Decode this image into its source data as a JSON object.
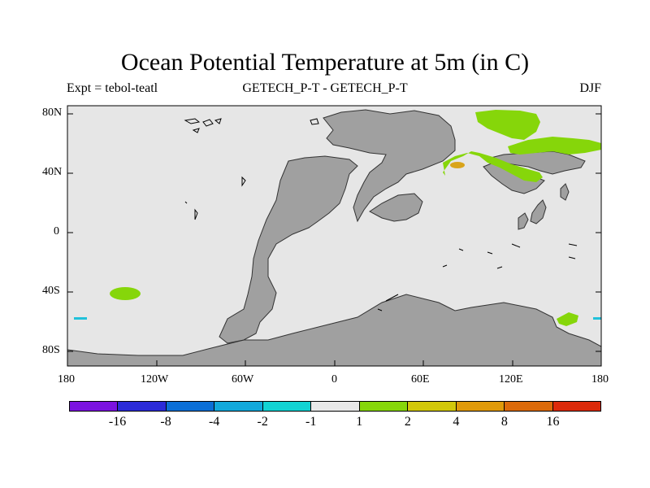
{
  "title": "Ocean Potential Temperature at 5m (in C)",
  "subtitle_left": "Expt = tebol-teatl",
  "subtitle_center": "GETECH_P-T - GETECH_P-T",
  "subtitle_right": "DJF",
  "y_ticks": [
    "80N",
    "40N",
    "0",
    "40S",
    "80S"
  ],
  "x_ticks": [
    "180",
    "120W",
    "60W",
    "0",
    "60E",
    "120E",
    "180"
  ],
  "colorbar": {
    "colors": [
      "#7b13e0",
      "#2b2bd8",
      "#0b6fd6",
      "#12a9dc",
      "#12d3d3",
      "#e8e8e8",
      "#86d60a",
      "#d2c80a",
      "#e09a0a",
      "#dc6a0a",
      "#dc2a0a"
    ],
    "labels": [
      "-16",
      "-8",
      "-4",
      "-2",
      "-1",
      "1",
      "2",
      "4",
      "8",
      "16"
    ]
  },
  "colors": {
    "ocean": "#e6e6e6",
    "land": "#a0a0a0",
    "warm": "#86d60a",
    "hot": "#d9a41a",
    "cool": "#21c1da"
  }
}
